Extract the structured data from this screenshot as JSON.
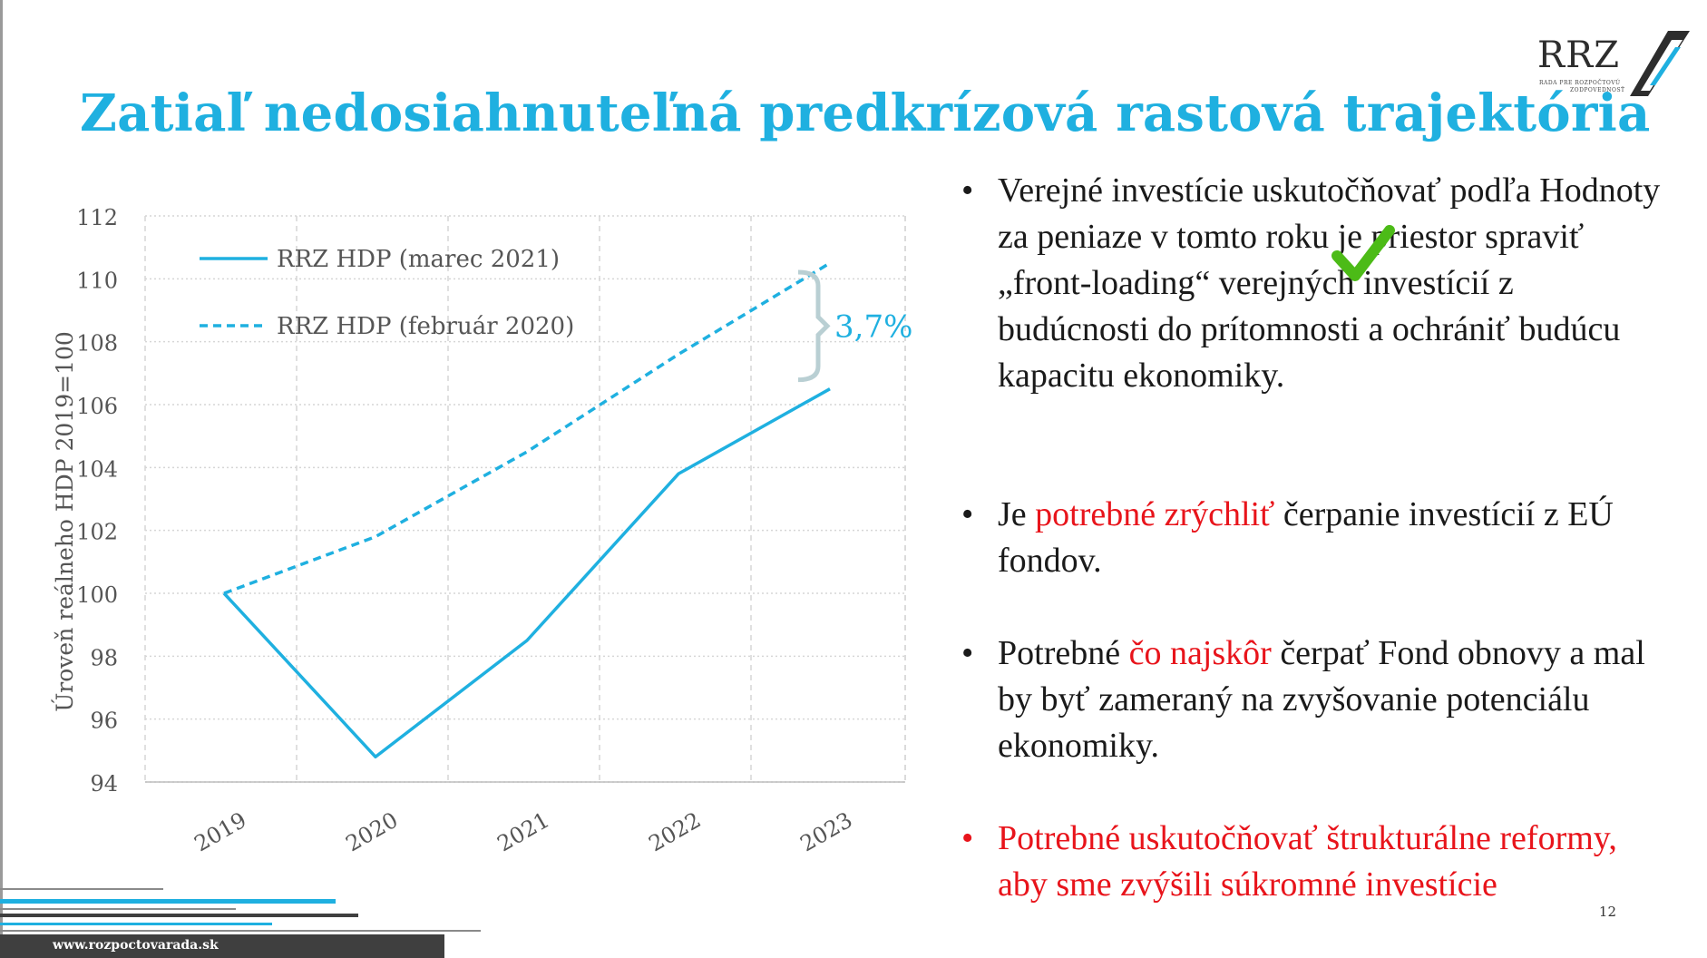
{
  "slide": {
    "title": "Zatiaľ nedosiahnuteľná predkrízová rastová trajektória",
    "page_number": "12",
    "footer_url": "www.rozpoctovarada.sk"
  },
  "logo": {
    "text": "RRZ",
    "subtitle_line1": "RADA PRE ROZPOČTOVÚ",
    "subtitle_line2": "ZODPOVEDNOSŤ"
  },
  "colors": {
    "accent": "#1fb0e0",
    "red": "#e8141b",
    "text": "#1a1a1a",
    "check": "#4cbb17"
  },
  "chart_data": {
    "type": "line",
    "categories": [
      "2019",
      "2020",
      "2021",
      "2022",
      "2023"
    ],
    "series": [
      {
        "name": "RRZ HDP (marec 2021)",
        "values": [
          100,
          94.8,
          98.5,
          103.8,
          106.5
        ],
        "style": "solid"
      },
      {
        "name": "RRZ HDP (február 2020)",
        "values": [
          100,
          101.8,
          104.5,
          107.6,
          110.5
        ],
        "style": "dashed"
      }
    ],
    "ylabel": "Úroveň reálneho HDP 2019=100",
    "xlabel": "",
    "ylim": [
      94,
      112
    ],
    "yticks": [
      94,
      96,
      98,
      100,
      102,
      104,
      106,
      108,
      110,
      112
    ],
    "annotation": "3,7%",
    "grid": true,
    "legend_position": "top-left"
  },
  "bullets": {
    "b1": {
      "text_a": "Verejné investície uskutočňovať podľa Hodnoty za peniaze ",
      "text_b": " v tomto roku je priestor spraviť „front-loading“ verejných investícií z budúcnosti do prítomnosti a ochrániť budúcu kapacitu ekonomiky."
    },
    "b2": {
      "pre": "Je ",
      "highlight": "potrebné zrýchliť",
      "post": " čerpanie investícií z EÚ fondov."
    },
    "b3": {
      "pre": "Potrebné ",
      "highlight": "čo najskôr",
      "post": " čerpať Fond obnovy a mal by byť zameraný na zvyšovanie potenciálu ekonomiky."
    },
    "b4": {
      "text": "Potrebné uskutočňovať štrukturálne reformy, aby sme zvýšili súkromné investície"
    }
  }
}
